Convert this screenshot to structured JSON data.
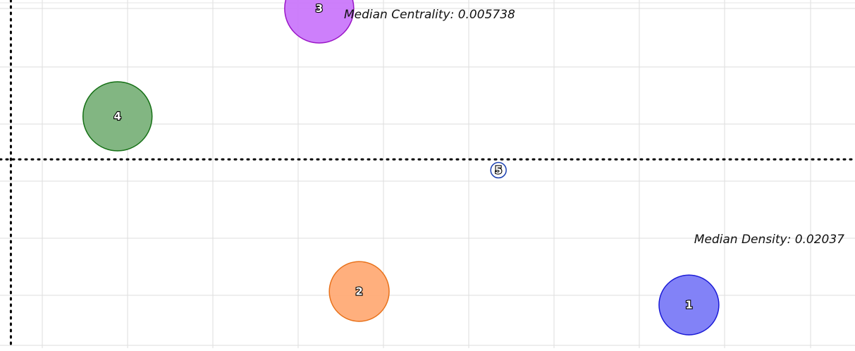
{
  "chart_data": {
    "type": "scatter",
    "variant": "bubble",
    "title": "",
    "xlabel": "",
    "ylabel": "",
    "grid": true,
    "xlim": [
      0.04,
      0.52
    ],
    "ylim": [
      0.0056,
      0.00585
    ],
    "medians": {
      "centrality_label": "Median Centrality: 0.005738",
      "density_label": "Median Density: 0.02037",
      "centrality_value": 0.005738,
      "density_value": 0.02037
    },
    "series": [
      {
        "label": "1",
        "x": 0.444,
        "y": 0.00563,
        "size": 0.6,
        "fill": "#7b7bf7",
        "stroke": "#1a1ad6"
      },
      {
        "label": "2",
        "x": 0.238,
        "y": 0.00564,
        "size": 0.6,
        "fill": "#ffab76",
        "stroke": "#e8711a"
      },
      {
        "label": "3",
        "x": 0.213,
        "y": 0.00585,
        "size": 0.8,
        "fill": "#ca78fb",
        "stroke": "#9a16c7"
      },
      {
        "label": "4",
        "x": 0.087,
        "y": 0.00577,
        "size": 0.8,
        "fill": "#7bb27b",
        "stroke": "#157015"
      },
      {
        "label": "5",
        "x": 0.325,
        "y": 0.00573,
        "size": 0.04,
        "fill": "#ffffff",
        "stroke": "#1a3fb0"
      }
    ]
  }
}
